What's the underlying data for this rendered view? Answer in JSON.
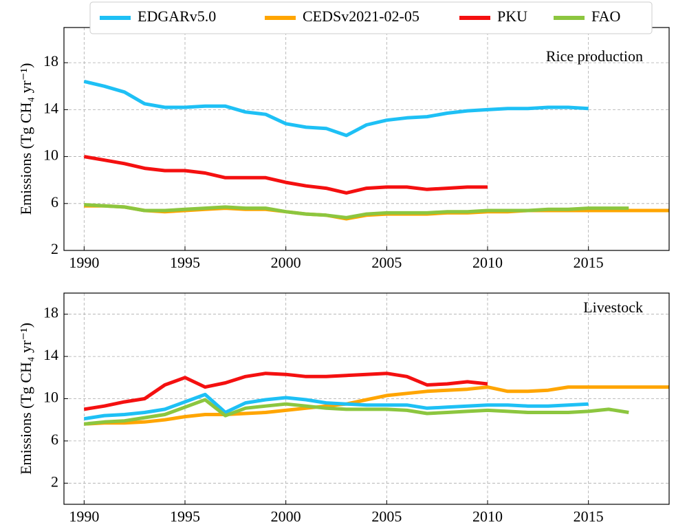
{
  "chart_data": [
    {
      "type": "line",
      "annotation": "Rice production",
      "ylabel": "Emissions (Tg  CH₄ yr⁻¹)",
      "legend": "top",
      "x": [
        1990,
        1991,
        1992,
        1993,
        1994,
        1995,
        1996,
        1997,
        1998,
        1999,
        2000,
        2001,
        2002,
        2003,
        2004,
        2005,
        2006,
        2007,
        2008,
        2009,
        2010,
        2011,
        2012,
        2013,
        2014,
        2015,
        2016,
        2017,
        2018,
        2019
      ],
      "xlim": [
        1989,
        2019
      ],
      "xticks": [
        1990,
        1995,
        2000,
        2005,
        2010,
        2015
      ],
      "ylim": [
        2,
        21
      ],
      "yticks": [
        2,
        6,
        10,
        14,
        18
      ],
      "grid": true,
      "series": [
        {
          "name": "EDGARv5.0",
          "color": "#1ec0f5",
          "values": [
            16.4,
            16.0,
            15.5,
            14.5,
            14.2,
            14.2,
            14.3,
            14.3,
            13.8,
            13.6,
            12.8,
            12.5,
            12.4,
            11.8,
            12.7,
            13.1,
            13.3,
            13.4,
            13.7,
            13.9,
            14.0,
            14.1,
            14.1,
            14.2,
            14.2,
            14.1,
            null,
            null,
            null,
            null
          ]
        },
        {
          "name": "CEDSv2021-02-05",
          "color": "#ffa500",
          "values": [
            5.8,
            5.8,
            5.7,
            5.4,
            5.3,
            5.4,
            5.5,
            5.6,
            5.5,
            5.5,
            5.3,
            5.1,
            5.0,
            4.7,
            5.0,
            5.1,
            5.1,
            5.1,
            5.2,
            5.2,
            5.3,
            5.3,
            5.4,
            5.4,
            5.4,
            5.4,
            5.4,
            5.4,
            5.4,
            5.4
          ]
        },
        {
          "name": "PKU",
          "color": "#f41010",
          "values": [
            10.0,
            9.7,
            9.4,
            9.0,
            8.8,
            8.8,
            8.6,
            8.2,
            8.2,
            8.2,
            7.8,
            7.5,
            7.3,
            6.9,
            7.3,
            7.4,
            7.4,
            7.2,
            7.3,
            7.4,
            7.4,
            null,
            null,
            null,
            null,
            null,
            null,
            null,
            null,
            null
          ]
        },
        {
          "name": "FAO",
          "color": "#8cc63f",
          "values": [
            5.9,
            5.8,
            5.7,
            5.4,
            5.4,
            5.5,
            5.6,
            5.7,
            5.6,
            5.6,
            5.3,
            5.1,
            5.0,
            4.8,
            5.1,
            5.2,
            5.2,
            5.2,
            5.3,
            5.3,
            5.4,
            5.4,
            5.4,
            5.5,
            5.5,
            5.6,
            5.6,
            5.6,
            null,
            null
          ]
        }
      ]
    },
    {
      "type": "line",
      "annotation": "Livestock",
      "ylabel": "Emissions (Tg  CH₄ yr⁻¹)",
      "x": [
        1990,
        1991,
        1992,
        1993,
        1994,
        1995,
        1996,
        1997,
        1998,
        1999,
        2000,
        2001,
        2002,
        2003,
        2004,
        2005,
        2006,
        2007,
        2008,
        2009,
        2010,
        2011,
        2012,
        2013,
        2014,
        2015,
        2016,
        2017,
        2018,
        2019
      ],
      "xlim": [
        1989,
        2019
      ],
      "xticks": [
        1990,
        1995,
        2000,
        2005,
        2010,
        2015
      ],
      "ylim": [
        0,
        20
      ],
      "yticks": [
        2,
        6,
        10,
        14,
        18
      ],
      "grid": true,
      "series": [
        {
          "color": "#1ec0f5",
          "values": [
            8.1,
            8.4,
            8.5,
            8.7,
            9.0,
            9.7,
            10.4,
            8.7,
            9.6,
            9.9,
            10.1,
            9.9,
            9.6,
            9.5,
            9.4,
            9.4,
            9.4,
            9.1,
            9.2,
            9.3,
            9.4,
            9.4,
            9.3,
            9.3,
            9.4,
            9.5,
            null,
            null,
            null,
            null
          ]
        },
        {
          "color": "#ffa500",
          "values": [
            7.6,
            7.7,
            7.7,
            7.8,
            8.0,
            8.3,
            8.5,
            8.5,
            8.6,
            8.7,
            8.9,
            9.1,
            9.3,
            9.5,
            9.9,
            10.3,
            10.5,
            10.7,
            10.8,
            10.9,
            11.1,
            10.7,
            10.7,
            10.8,
            11.1,
            11.1,
            11.1,
            11.1,
            11.1,
            11.1
          ]
        },
        {
          "color": "#f41010",
          "values": [
            9.0,
            9.3,
            9.7,
            10.0,
            11.3,
            12.0,
            11.1,
            11.5,
            12.1,
            12.4,
            12.3,
            12.1,
            12.1,
            12.2,
            12.3,
            12.4,
            12.1,
            11.3,
            11.4,
            11.6,
            11.4,
            null,
            null,
            null,
            null,
            null,
            null,
            null,
            null,
            null
          ]
        },
        {
          "color": "#8cc63f",
          "values": [
            7.6,
            7.8,
            7.9,
            8.2,
            8.5,
            9.2,
            9.9,
            8.4,
            9.1,
            9.3,
            9.5,
            9.3,
            9.1,
            9.0,
            9.0,
            9.0,
            8.9,
            8.6,
            8.7,
            8.8,
            8.9,
            8.8,
            8.7,
            8.7,
            8.7,
            8.8,
            9.0,
            8.7,
            null,
            null
          ]
        }
      ]
    }
  ]
}
